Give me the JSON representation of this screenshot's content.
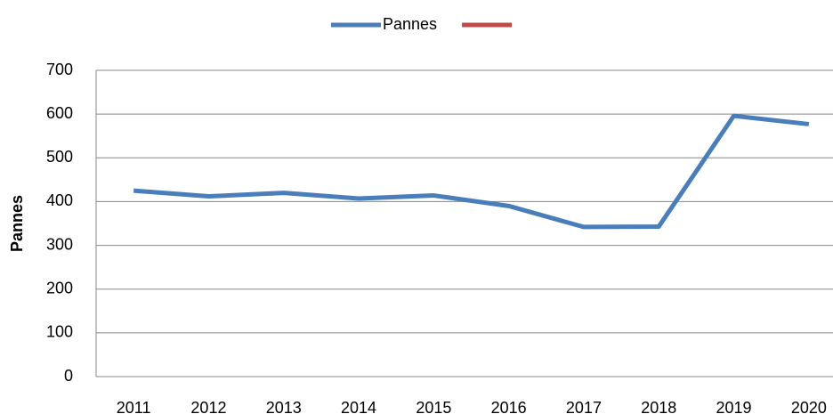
{
  "chart_data": {
    "type": "line",
    "y_label": "Pannes",
    "categories": [
      "2011",
      "2012",
      "2013",
      "2014",
      "2015",
      "2016",
      "2017",
      "2018",
      "2019",
      "2020"
    ],
    "series": [
      {
        "name": "Pannes",
        "color": "#4a7ebb",
        "values": [
          425,
          412,
          420,
          407,
          414,
          390,
          342,
          343,
          596,
          577
        ]
      },
      {
        "color": "#be4b48",
        "values": [
          null,
          null,
          null,
          null,
          null,
          null,
          null,
          null,
          null,
          null
        ]
      }
    ],
    "ylim": [
      0,
      700
    ],
    "yticks": [
      0,
      100,
      200,
      300,
      400,
      500,
      600,
      700
    ],
    "grid": true,
    "legend": "top"
  }
}
